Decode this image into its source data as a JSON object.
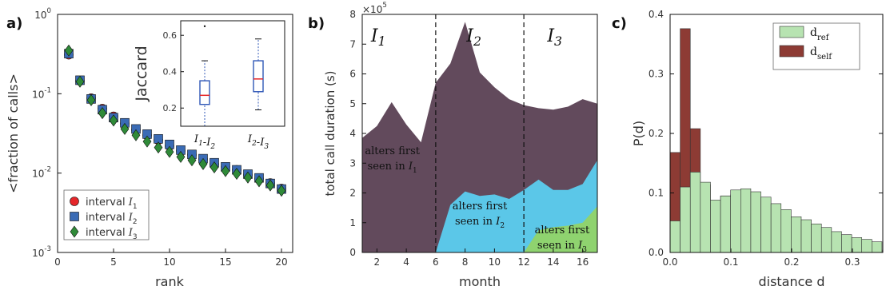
{
  "panels": {
    "a": "a)",
    "b": "b)",
    "c": "c)"
  },
  "colors": {
    "red": "#e5262a",
    "blue": "#3a6bb5",
    "green": "#2f8a38",
    "purple": "#624a5c",
    "cyan": "#5bc7e8",
    "lightgreen": "#8fd36f",
    "hist_green": "#b7e3b1",
    "hist_brown": "#8d3b34",
    "boxblue": "#2f57b7"
  },
  "chart_data": [
    {
      "type": "scatter",
      "panel": "a",
      "xlabel": "rank",
      "ylabel": "<fraction of calls>",
      "x_ticks": [
        "0",
        "5",
        "10",
        "15",
        "20"
      ],
      "y_ticks": [
        "10^-3",
        "10^-2",
        "10^-1",
        "10^0"
      ],
      "xlim": [
        0,
        21
      ],
      "ylim": [
        0.001,
        1
      ],
      "yscale": "log",
      "legend_position": "bottom-left",
      "series": [
        {
          "name": "interval I1",
          "marker": "circle",
          "color": "#e5262a",
          "x": [
            1,
            2,
            3,
            4,
            5,
            6,
            7,
            8,
            9,
            10,
            11,
            12,
            13,
            14,
            15,
            16,
            17,
            18,
            19,
            20
          ],
          "y": [
            0.31,
            0.145,
            0.088,
            0.065,
            0.052,
            0.042,
            0.035,
            0.03,
            0.026,
            0.022,
            0.019,
            0.017,
            0.015,
            0.013,
            0.012,
            0.011,
            0.0095,
            0.0085,
            0.0075,
            0.0064
          ]
        },
        {
          "name": "interval I2",
          "marker": "square",
          "color": "#3a6bb5",
          "x": [
            1,
            2,
            3,
            4,
            5,
            6,
            7,
            8,
            9,
            10,
            11,
            12,
            13,
            14,
            15,
            16,
            17,
            18,
            19,
            20
          ],
          "y": [
            0.32,
            0.148,
            0.086,
            0.063,
            0.05,
            0.043,
            0.036,
            0.031,
            0.027,
            0.023,
            0.0195,
            0.0172,
            0.0152,
            0.0135,
            0.012,
            0.011,
            0.0097,
            0.0087,
            0.0074,
            0.0063
          ]
        },
        {
          "name": "interval I3",
          "marker": "diamond",
          "color": "#2f8a38",
          "x": [
            1,
            2,
            3,
            4,
            5,
            6,
            7,
            8,
            9,
            10,
            11,
            12,
            13,
            14,
            15,
            16,
            17,
            18,
            19,
            20
          ],
          "y": [
            0.35,
            0.142,
            0.083,
            0.057,
            0.046,
            0.036,
            0.03,
            0.025,
            0.021,
            0.0185,
            0.016,
            0.0145,
            0.013,
            0.0118,
            0.0106,
            0.0098,
            0.0088,
            0.0079,
            0.007,
            0.006
          ]
        }
      ],
      "inset": {
        "type": "box",
        "ylabel": "Jaccard",
        "y_ticks": [
          "0.2",
          "0.4",
          "0.6"
        ],
        "ylim": [
          0.1,
          0.68
        ],
        "categories": [
          "I1-I2",
          "I2-I3"
        ],
        "boxes": [
          {
            "whisker_low": 0.1,
            "q1": 0.22,
            "median": 0.27,
            "q3": 0.35,
            "whisker_high": 0.46,
            "outlier": 0.65
          },
          {
            "whisker_low": 0.19,
            "q1": 0.29,
            "median": 0.36,
            "q3": 0.46,
            "whisker_high": 0.58
          }
        ]
      }
    },
    {
      "type": "area",
      "panel": "b",
      "xlabel": "month",
      "ylabel": "total call duration (s)",
      "y_scale_label": "×10^5",
      "x_ticks": [
        "2",
        "4",
        "6",
        "8",
        "10",
        "12",
        "14",
        "16"
      ],
      "y_ticks": [
        "0",
        "1",
        "2",
        "3",
        "4",
        "5",
        "6",
        "7",
        "8"
      ],
      "xlim": [
        1,
        17
      ],
      "ylim": [
        0,
        8
      ],
      "interval_dividers": [
        6,
        12
      ],
      "interval_labels": [
        "I1",
        "I2",
        "I3"
      ],
      "series": [
        {
          "name": "alters first seen in I1",
          "x": [
            1,
            2,
            3,
            4,
            5,
            6,
            7,
            8,
            9,
            10,
            11,
            12,
            13,
            14,
            15,
            16,
            17
          ],
          "y": [
            3.85,
            4.25,
            5.05,
            4.3,
            3.7,
            5.7,
            6.35,
            7.75,
            6.05,
            5.55,
            5.15,
            4.95,
            4.85,
            4.8,
            4.9,
            5.15,
            5.0
          ]
        },
        {
          "name": "alters first seen in I2",
          "x": [
            6,
            7,
            8,
            9,
            10,
            11,
            12,
            13,
            14,
            15,
            16,
            17
          ],
          "y": [
            0,
            1.6,
            2.05,
            1.9,
            1.95,
            1.8,
            2.1,
            2.45,
            2.1,
            2.1,
            2.3,
            3.1
          ]
        },
        {
          "name": "alters first seen in I3",
          "x": [
            12,
            13,
            14,
            15,
            16,
            17
          ],
          "y": [
            0,
            0.75,
            0.85,
            0.9,
            1.0,
            1.55
          ]
        }
      ]
    },
    {
      "type": "bar",
      "panel": "c",
      "xlabel": "distance d",
      "ylabel": "P(d)",
      "x_ticks": [
        "0.0",
        "0.1",
        "0.2",
        "0.3"
      ],
      "y_ticks": [
        "0.0",
        "0.1",
        "0.2",
        "0.3",
        "0.4"
      ],
      "xlim": [
        0,
        0.35
      ],
      "ylim": [
        0,
        0.4
      ],
      "legend_position": "top-right",
      "bin_width": 0.0166,
      "series": [
        {
          "name": "d_ref",
          "color": "#b7e3b1",
          "values": [
            0.053,
            0.11,
            0.135,
            0.118,
            0.088,
            0.095,
            0.105,
            0.107,
            0.102,
            0.093,
            0.082,
            0.072,
            0.06,
            0.055,
            0.048,
            0.042,
            0.035,
            0.03,
            0.025,
            0.022,
            0.018
          ]
        },
        {
          "name": "d_self",
          "color": "#8d3b34",
          "values": [
            0.168,
            0.376,
            0.208,
            0.114,
            0.085,
            0.095,
            0.097,
            0.065,
            0.04,
            0.038,
            0.03,
            0.025,
            0.02,
            0.018,
            0.015,
            0.012,
            0.01,
            0.008,
            0.006,
            0.005,
            0.004
          ]
        }
      ]
    }
  ]
}
